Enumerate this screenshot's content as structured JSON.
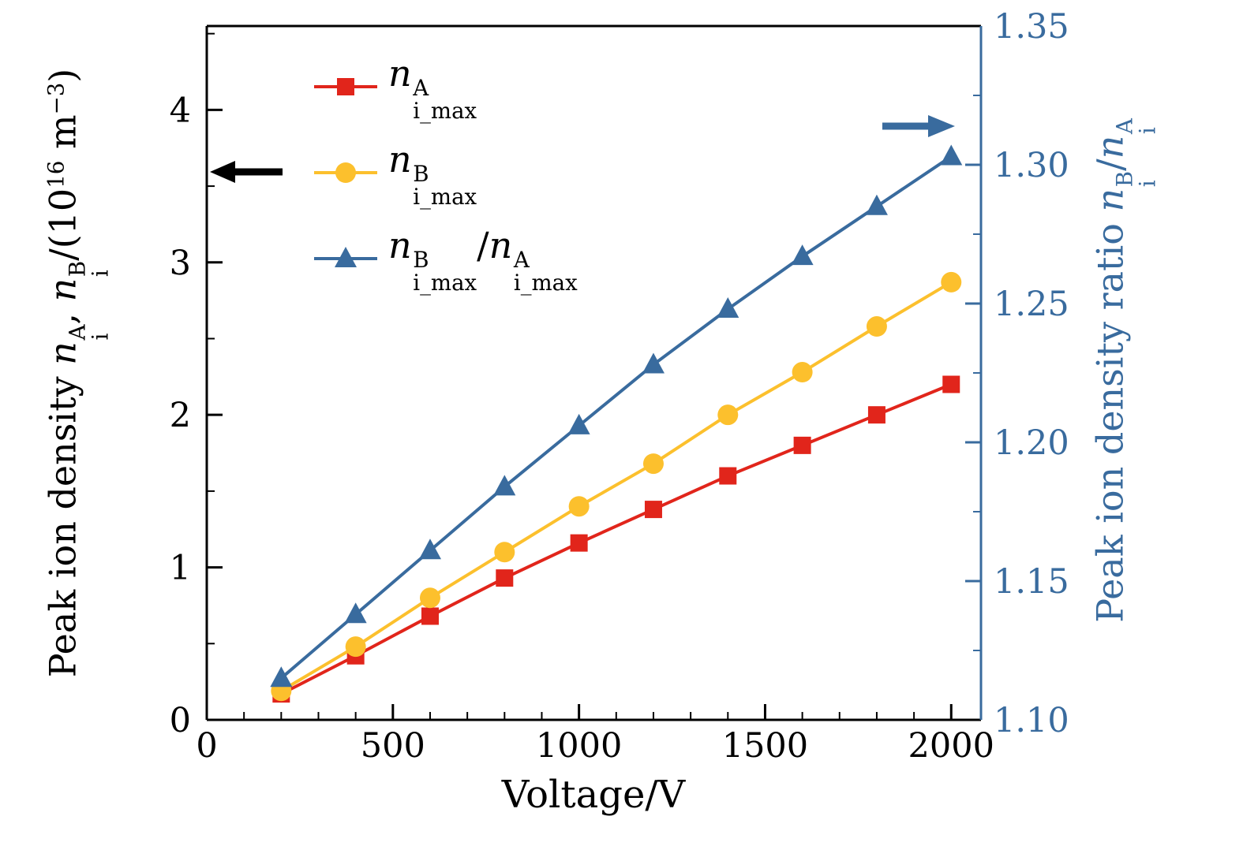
{
  "figure": {
    "background": "#ffffff"
  },
  "chart_data": {
    "type": "line",
    "title": "",
    "xlabel": "Voltage/V",
    "x": [
      200,
      400,
      600,
      800,
      1000,
      1200,
      1400,
      1600,
      1800,
      2000
    ],
    "xlim": [
      0,
      2080
    ],
    "xticks": {
      "values": [
        0,
        500,
        1000,
        1500,
        2000
      ],
      "labels": [
        "0",
        "500",
        "1000",
        "1500",
        "2000"
      ],
      "minor_step": 100
    },
    "left_axis": {
      "lim": [
        0,
        4.55
      ],
      "ticks": {
        "values": [
          0,
          1,
          2,
          3,
          4
        ],
        "labels": [
          "0",
          "1",
          "2",
          "3",
          "4"
        ],
        "minor_step": 0.5
      },
      "color": "#000000",
      "label_tokens": [
        {
          "t": "Peak ion density "
        },
        {
          "v": "n",
          "sup": "A",
          "sub": "i"
        },
        {
          "t": ", "
        },
        {
          "v": "n",
          "sup": "B",
          "sub": "i"
        },
        {
          "t": "/(10"
        },
        {
          "sup": "16"
        },
        {
          "t": " m"
        },
        {
          "sup": "−3"
        },
        {
          "t": ")"
        }
      ]
    },
    "right_axis": {
      "lim": [
        1.1,
        1.35
      ],
      "ticks": {
        "values": [
          1.1,
          1.15,
          1.2,
          1.25,
          1.3,
          1.35
        ],
        "labels": [
          "1.10",
          "1.15",
          "1.20",
          "1.25",
          "1.30",
          "1.35"
        ],
        "minor_step": 0.025
      },
      "color": "#396b9e",
      "label_tokens": [
        {
          "t": "Peak ion density ratio "
        },
        {
          "v": "n",
          "sup": "B",
          "sub": "i"
        },
        {
          "t": "/"
        },
        {
          "v": "n",
          "sup": "A",
          "sub": "i"
        }
      ]
    },
    "series": [
      {
        "id": "ni-max-A",
        "axis": "left",
        "marker": "square",
        "color": "#e1251b",
        "values": [
          0.17,
          0.42,
          0.68,
          0.93,
          1.16,
          1.38,
          1.6,
          1.8,
          2.0,
          2.2
        ],
        "label_tokens": [
          {
            "v": "n",
            "sup": "A",
            "sub": "i_max"
          }
        ]
      },
      {
        "id": "ni-max-B",
        "axis": "left",
        "marker": "circle",
        "color": "#fcc02d",
        "values": [
          0.19,
          0.48,
          0.8,
          1.1,
          1.4,
          1.68,
          2.0,
          2.28,
          2.58,
          2.87
        ],
        "label_tokens": [
          {
            "v": "n",
            "sup": "B",
            "sub": "i_max"
          }
        ]
      },
      {
        "id": "ratio-B-over-A",
        "axis": "right",
        "marker": "triangle",
        "color": "#396b9e",
        "values": [
          1.115,
          1.138,
          1.161,
          1.184,
          1.206,
          1.228,
          1.248,
          1.267,
          1.285,
          1.303
        ],
        "label_tokens": [
          {
            "v": "n",
            "sup": "B",
            "sub": "i_max"
          },
          {
            "t": "/"
          },
          {
            "v": "n",
            "sup": "A",
            "sub": "i_max"
          }
        ]
      }
    ],
    "arrows": [
      {
        "points_to": "left-axis",
        "direction": "left",
        "color": "#000000"
      },
      {
        "points_to": "right-axis",
        "direction": "right",
        "color": "#396b9e"
      }
    ],
    "legend_position": "top-left-inside",
    "grid": false
  }
}
